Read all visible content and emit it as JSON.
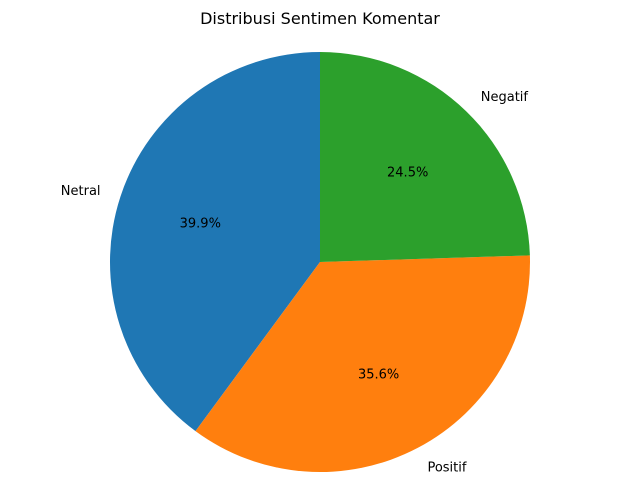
{
  "chart_data": {
    "type": "pie",
    "title": "Distribusi Sentimen Komentar",
    "start_angle_deg": 90,
    "direction": "counterclockwise",
    "slices": [
      {
        "label": "Netral",
        "value": 39.9,
        "pct_label": "39.9%",
        "color": "#1f77b4"
      },
      {
        "label": "Positif",
        "value": 35.6,
        "pct_label": "35.6%",
        "color": "#ff7f0e"
      },
      {
        "label": "Negatif",
        "value": 24.5,
        "pct_label": "24.5%",
        "color": "#2ca02c"
      }
    ]
  }
}
